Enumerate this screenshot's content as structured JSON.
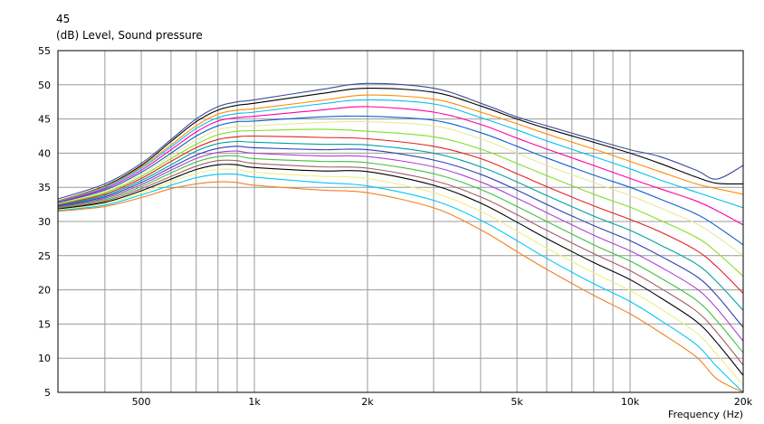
{
  "chart_data": {
    "type": "line",
    "top_number": "45",
    "ylabel": "(dB)  Level, Sound pressure",
    "xlabel": "Frequency  (Hz)",
    "x_scale": "log",
    "xlim": [
      300,
      20000
    ],
    "ylim": [
      5,
      55
    ],
    "grid": true,
    "y_ticks": [
      "55",
      "50",
      "45",
      "40",
      "35",
      "30",
      "25",
      "20",
      "15",
      "10",
      "5"
    ],
    "x_tick_labels": [
      {
        "value": 500,
        "label": "500"
      },
      {
        "value": 1000,
        "label": "1k"
      },
      {
        "value": 2000,
        "label": "2k"
      },
      {
        "value": 5000,
        "label": "5k"
      },
      {
        "value": 10000,
        "label": "10k"
      },
      {
        "value": 20000,
        "label": "20k"
      }
    ],
    "x_grid": [
      400,
      500,
      600,
      700,
      800,
      900,
      1000,
      2000,
      3000,
      4000,
      5000,
      6000,
      7000,
      8000,
      9000,
      10000,
      20000
    ],
    "x": [
      300,
      400,
      500,
      600,
      700,
      800,
      900,
      1000,
      1500,
      2000,
      3000,
      4000,
      5000,
      6000,
      8000,
      10000,
      12000,
      15000,
      17000,
      20000
    ],
    "series": [
      {
        "color": "#3b4a9b",
        "values": [
          33.3,
          35.5,
          38.5,
          42.0,
          45.0,
          46.8,
          47.5,
          47.8,
          49.3,
          50.2,
          49.5,
          47.3,
          45.3,
          44.0,
          42.0,
          40.5,
          39.5,
          37.5,
          36.2,
          38.2
        ]
      },
      {
        "color": "#000000",
        "values": [
          33.0,
          35.2,
          38.2,
          41.7,
          44.6,
          46.3,
          47.0,
          47.3,
          48.7,
          49.5,
          48.9,
          46.9,
          45.0,
          43.6,
          41.6,
          40.0,
          38.5,
          36.5,
          35.6,
          35.5
        ]
      },
      {
        "color": "#ff8c00",
        "values": [
          33.0,
          35.1,
          38.0,
          41.2,
          44.0,
          45.7,
          46.3,
          46.5,
          47.7,
          48.5,
          47.9,
          46.0,
          44.3,
          42.8,
          40.6,
          38.8,
          37.3,
          35.5,
          34.8,
          34.0
        ]
      },
      {
        "color": "#00c0f0",
        "values": [
          32.9,
          35.0,
          37.8,
          40.9,
          43.6,
          45.2,
          45.8,
          46.0,
          47.2,
          47.8,
          47.2,
          45.2,
          43.4,
          41.8,
          39.5,
          37.7,
          36.1,
          34.3,
          33.3,
          32.0
        ]
      },
      {
        "color": "#ff00a0",
        "values": [
          32.8,
          34.8,
          37.5,
          40.5,
          43.1,
          44.7,
          45.2,
          45.4,
          46.3,
          46.8,
          46.0,
          44.2,
          42.2,
          40.6,
          38.2,
          36.3,
          34.8,
          33.0,
          31.6,
          29.5
        ]
      },
      {
        "color": "#1060d0",
        "values": [
          32.7,
          34.6,
          37.2,
          40.0,
          42.5,
          44.0,
          44.6,
          44.7,
          45.3,
          45.4,
          44.8,
          43.0,
          41.0,
          39.3,
          36.8,
          35.0,
          33.3,
          31.1,
          29.3,
          26.6
        ]
      },
      {
        "color": "#e8e8a0",
        "values": [
          32.6,
          34.4,
          36.9,
          39.6,
          41.9,
          43.4,
          43.9,
          44.0,
          44.5,
          44.6,
          44.0,
          42.1,
          40.0,
          38.2,
          35.7,
          33.8,
          32.0,
          29.7,
          27.8,
          25.0
        ]
      },
      {
        "color": "#80e020",
        "values": [
          32.5,
          34.2,
          36.6,
          39.2,
          41.3,
          42.7,
          43.2,
          43.3,
          43.5,
          43.2,
          42.4,
          40.6,
          38.5,
          36.7,
          34.0,
          32.1,
          30.2,
          27.7,
          25.5,
          22.0
        ]
      },
      {
        "color": "#e02020",
        "values": [
          32.4,
          34.0,
          36.3,
          38.8,
          40.8,
          42.0,
          42.4,
          42.5,
          42.3,
          42.1,
          41.0,
          39.2,
          37.0,
          35.1,
          32.3,
          30.3,
          28.5,
          25.8,
          23.4,
          19.5
        ]
      },
      {
        "color": "#00a0a0",
        "values": [
          32.3,
          33.8,
          36.0,
          38.3,
          40.3,
          41.4,
          41.7,
          41.6,
          41.3,
          41.2,
          40.0,
          38.0,
          35.8,
          33.8,
          30.8,
          28.7,
          26.6,
          23.8,
          21.2,
          17.0
        ]
      },
      {
        "color": "#3040b0",
        "values": [
          32.2,
          33.6,
          35.7,
          37.9,
          39.7,
          40.7,
          41.0,
          40.8,
          40.5,
          40.5,
          39.0,
          36.9,
          34.6,
          32.5,
          29.4,
          27.2,
          25.0,
          22.0,
          19.2,
          14.5
        ]
      },
      {
        "color": "#b040d0",
        "values": [
          32.1,
          33.4,
          35.4,
          37.5,
          39.2,
          40.1,
          40.3,
          40.0,
          39.6,
          39.5,
          38.0,
          35.8,
          33.4,
          31.3,
          28.0,
          25.7,
          23.4,
          20.2,
          17.3,
          12.5
        ]
      },
      {
        "color": "#40c040",
        "values": [
          32.0,
          33.2,
          35.1,
          37.1,
          38.7,
          39.5,
          39.6,
          39.2,
          38.8,
          38.6,
          37.0,
          34.7,
          32.2,
          30.0,
          26.6,
          24.2,
          21.8,
          18.5,
          15.5,
          10.8
        ]
      },
      {
        "color": "#a06060",
        "values": [
          31.9,
          33.0,
          34.8,
          36.6,
          38.1,
          38.9,
          38.9,
          38.5,
          38.0,
          37.8,
          36.0,
          33.6,
          31.0,
          28.7,
          25.3,
          22.8,
          20.3,
          16.9,
          13.8,
          9.0
        ]
      },
      {
        "color": "#000000",
        "values": [
          31.8,
          32.8,
          34.5,
          36.2,
          37.6,
          38.3,
          38.3,
          37.9,
          37.4,
          37.3,
          35.3,
          32.7,
          29.9,
          27.5,
          24.0,
          21.5,
          18.9,
          15.4,
          12.3,
          7.5
        ]
      },
      {
        "color": "#f0f080",
        "values": [
          31.7,
          32.6,
          34.2,
          35.8,
          37.0,
          37.6,
          37.6,
          37.2,
          36.6,
          36.3,
          34.2,
          31.5,
          28.6,
          26.1,
          22.5,
          19.9,
          17.3,
          13.7,
          10.6,
          6.0
        ]
      },
      {
        "color": "#00c8f0",
        "values": [
          31.6,
          32.4,
          33.9,
          35.3,
          36.4,
          36.9,
          36.9,
          36.5,
          35.7,
          35.2,
          33.1,
          30.2,
          27.2,
          24.6,
          20.9,
          18.3,
          15.6,
          12.0,
          8.8,
          5.0
        ]
      },
      {
        "color": "#f08020",
        "values": [
          31.5,
          32.2,
          33.5,
          34.8,
          35.5,
          35.8,
          35.7,
          35.3,
          34.6,
          34.2,
          32.0,
          28.8,
          25.6,
          23.0,
          19.2,
          16.5,
          13.8,
          10.2,
          7.0,
          5.0
        ]
      }
    ]
  }
}
